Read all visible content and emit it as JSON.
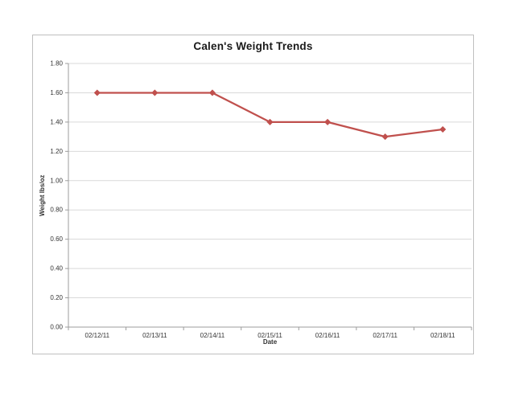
{
  "chart_data": {
    "type": "line",
    "title": "Calen's Weight Trends",
    "xlabel": "Date",
    "ylabel": "Weight lbs/oz",
    "categories": [
      "02/12/11",
      "02/13/11",
      "02/14/11",
      "02/15/11",
      "02/16/11",
      "02/17/11",
      "02/18/11"
    ],
    "series": [
      {
        "values": [
          1.6,
          1.6,
          1.6,
          1.4,
          1.4,
          1.3,
          1.35
        ],
        "color": "#c0504d"
      }
    ],
    "ylim": [
      0.0,
      1.8
    ],
    "ytick_step": 0.2,
    "ytick_labels": [
      "0.00",
      "0.20",
      "0.40",
      "0.60",
      "0.80",
      "1.00",
      "1.20",
      "1.40",
      "1.60",
      "1.80"
    ],
    "grid": true,
    "legend": "none",
    "marker": "diamond"
  },
  "colors": {
    "gridline": "#d9d9d9",
    "axis_line": "#9c9c9c",
    "frame_border": "#bfbfbf",
    "tick_text": "#333333",
    "background": "#ffffff"
  }
}
